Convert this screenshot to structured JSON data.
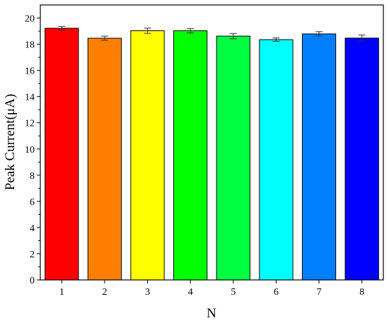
{
  "chart_data": {
    "type": "bar",
    "categories": [
      "1",
      "2",
      "3",
      "4",
      "5",
      "6",
      "7",
      "8"
    ],
    "values": [
      19.22,
      18.46,
      19.03,
      19.03,
      18.62,
      18.35,
      18.79,
      18.47
    ],
    "errors": [
      0.14,
      0.16,
      0.2,
      0.17,
      0.2,
      0.13,
      0.17,
      0.23
    ],
    "colors": [
      "#ff0000",
      "#ff8000",
      "#ffff00",
      "#00ff00",
      "#00ff40",
      "#00ffff",
      "#0080ff",
      "#0000ff"
    ],
    "xlabel": "N",
    "ylabel": "Peak Current(μA)",
    "ylim": [
      0,
      21
    ],
    "yticks": [
      0,
      2,
      4,
      6,
      8,
      10,
      12,
      14,
      16,
      18,
      20
    ],
    "ytick_labels": [
      "0",
      "2",
      "4",
      "6",
      "8",
      "10",
      "12",
      "14",
      "16",
      "18",
      "20"
    ],
    "grid": false,
    "legend": "none"
  }
}
